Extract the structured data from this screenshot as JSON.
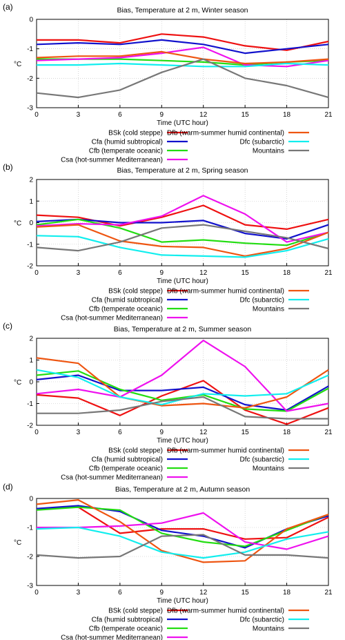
{
  "series_meta": [
    {
      "name": "BSk (cold steppe)",
      "color": "#ee1111"
    },
    {
      "name": "Cfa (humid subtropical)",
      "color": "#1111cc"
    },
    {
      "name": "Cfb (temperate oceanic)",
      "color": "#22dd11"
    },
    {
      "name": "Csa (hot-summer Mediterranean)",
      "color": "#ee11ee"
    },
    {
      "name": "Dfb (warm-summer humid continental)",
      "color": "#ee5511"
    },
    {
      "name": "Dfc (subarctic)",
      "color": "#11eeee"
    },
    {
      "name": "Mountains",
      "color": "#777777"
    }
  ],
  "chart_data": [
    {
      "type": "line",
      "panel_label": "(a)",
      "title": "Bias, Temperature at 2 m, Winter season",
      "xlabel": "Time (UTC hour)",
      "ylabel": "°C",
      "x": [
        0,
        3,
        6,
        9,
        12,
        15,
        18,
        21
      ],
      "xlim": [
        0,
        21
      ],
      "ylim": [
        -3,
        0
      ],
      "yticks": [
        -3,
        -2,
        -1,
        0
      ],
      "grid": true,
      "legend_position": "below",
      "series": [
        {
          "name": "BSk (cold steppe)",
          "values": [
            -0.7,
            -0.7,
            -0.8,
            -0.5,
            -0.6,
            -0.9,
            -1.05,
            -0.75
          ]
        },
        {
          "name": "Cfa (humid subtropical)",
          "values": [
            -0.85,
            -0.8,
            -0.85,
            -0.7,
            -0.85,
            -1.15,
            -1.0,
            -0.85
          ]
        },
        {
          "name": "Cfb (temperate oceanic)",
          "values": [
            -1.35,
            -1.35,
            -1.35,
            -1.4,
            -1.45,
            -1.55,
            -1.45,
            -1.4
          ]
        },
        {
          "name": "Csa (hot-summer Mediterranean)",
          "values": [
            -1.4,
            -1.35,
            -1.3,
            -1.15,
            -0.95,
            -1.55,
            -1.6,
            -1.4
          ]
        },
        {
          "name": "Dfb (warm-summer humid continental)",
          "values": [
            -1.3,
            -1.25,
            -1.25,
            -1.1,
            -1.35,
            -1.5,
            -1.45,
            -1.35
          ]
        },
        {
          "name": "Dfc (subarctic)",
          "values": [
            -1.55,
            -1.55,
            -1.5,
            -1.55,
            -1.6,
            -1.6,
            -1.5,
            -1.55
          ]
        },
        {
          "name": "Mountains",
          "values": [
            -2.5,
            -2.65,
            -2.4,
            -1.8,
            -1.35,
            -2.0,
            -2.25,
            -2.65
          ]
        }
      ]
    },
    {
      "type": "line",
      "panel_label": "(b)",
      "title": "Bias, Temperature at 2 m, Spring season",
      "xlabel": "Time (UTC hour)",
      "ylabel": "°C",
      "x": [
        0,
        3,
        6,
        9,
        12,
        15,
        18,
        21
      ],
      "xlim": [
        0,
        21
      ],
      "ylim": [
        -2,
        2
      ],
      "yticks": [
        -2,
        -1,
        0,
        1,
        2
      ],
      "grid": true,
      "legend_position": "below",
      "series": [
        {
          "name": "BSk (cold steppe)",
          "values": [
            0.35,
            0.25,
            -0.15,
            0.25,
            0.8,
            -0.1,
            -0.3,
            0.15
          ]
        },
        {
          "name": "Cfa (humid subtropical)",
          "values": [
            0.05,
            0.15,
            0.0,
            0.0,
            0.1,
            -0.5,
            -0.75,
            -0.1
          ]
        },
        {
          "name": "Cfb (temperate oceanic)",
          "values": [
            -0.1,
            0.15,
            -0.25,
            -0.9,
            -0.8,
            -0.95,
            -1.05,
            -0.45
          ]
        },
        {
          "name": "Csa (hot-summer Mediterranean)",
          "values": [
            -0.15,
            -0.05,
            -0.1,
            0.3,
            1.25,
            0.4,
            -0.9,
            -0.45
          ]
        },
        {
          "name": "Dfb (warm-summer humid continental)",
          "values": [
            -0.2,
            -0.1,
            -0.85,
            -1.1,
            -1.15,
            -1.55,
            -1.2,
            -0.45
          ]
        },
        {
          "name": "Dfc (subarctic)",
          "values": [
            -0.6,
            -0.65,
            -1.15,
            -1.5,
            -1.55,
            -1.6,
            -1.3,
            -0.75
          ]
        },
        {
          "name": "Mountains",
          "values": [
            -1.15,
            -1.3,
            -0.9,
            -0.25,
            -0.1,
            -0.4,
            -0.7,
            -1.2
          ]
        }
      ]
    },
    {
      "type": "line",
      "panel_label": "(c)",
      "title": "Bias, Temperature at 2 m, Summer season",
      "xlabel": "Time (UTC hour)",
      "ylabel": "°C",
      "x": [
        0,
        3,
        6,
        9,
        12,
        15,
        18,
        21
      ],
      "xlim": [
        0,
        21
      ],
      "ylim": [
        -2,
        2
      ],
      "yticks": [
        -2,
        -1,
        0,
        1,
        2
      ],
      "grid": true,
      "legend_position": "below",
      "series": [
        {
          "name": "BSk (cold steppe)",
          "values": [
            -0.6,
            -0.75,
            -1.55,
            -0.65,
            0.05,
            -1.3,
            -1.95,
            -1.2
          ]
        },
        {
          "name": "Cfa (humid subtropical)",
          "values": [
            0.1,
            0.3,
            -0.4,
            -0.4,
            -0.25,
            -1.05,
            -1.3,
            -0.2
          ]
        },
        {
          "name": "Cfb (temperate oceanic)",
          "values": [
            0.3,
            0.5,
            -0.35,
            -0.85,
            -0.6,
            -1.25,
            -1.35,
            -0.3
          ]
        },
        {
          "name": "Csa (hot-summer Mediterranean)",
          "values": [
            -0.55,
            -0.35,
            -0.7,
            0.3,
            1.9,
            0.7,
            -1.35,
            -1.0
          ]
        },
        {
          "name": "Dfb (warm-summer humid continental)",
          "values": [
            1.1,
            0.85,
            -0.7,
            -1.1,
            -1.0,
            -1.2,
            -0.7,
            0.55
          ]
        },
        {
          "name": "Dfc (subarctic)",
          "values": [
            0.55,
            0.2,
            -0.7,
            -1.05,
            -0.55,
            -0.65,
            -0.55,
            0.3
          ]
        },
        {
          "name": "Mountains",
          "values": [
            -1.45,
            -1.45,
            -1.3,
            -0.9,
            -0.7,
            -1.6,
            -1.7,
            -1.7
          ]
        }
      ]
    },
    {
      "type": "line",
      "panel_label": "(d)",
      "title": "Bias, Temperature at 2 m, Autumn season",
      "xlabel": "Time (UTC hour)",
      "ylabel": "°C",
      "x": [
        0,
        3,
        6,
        9,
        12,
        15,
        18,
        21
      ],
      "xlim": [
        0,
        21
      ],
      "ylim": [
        -3,
        0
      ],
      "yticks": [
        -3,
        -2,
        -1,
        0
      ],
      "grid": true,
      "legend_position": "below",
      "series": [
        {
          "name": "BSk (cold steppe)",
          "values": [
            -0.35,
            -0.3,
            -1.2,
            -1.05,
            -1.05,
            -1.4,
            -1.35,
            -0.65
          ]
        },
        {
          "name": "Cfa (humid subtropical)",
          "values": [
            -0.35,
            -0.25,
            -0.45,
            -1.1,
            -1.3,
            -1.7,
            -1.05,
            -0.6
          ]
        },
        {
          "name": "Cfb (temperate oceanic)",
          "values": [
            -0.4,
            -0.3,
            -0.4,
            -1.2,
            -1.5,
            -1.65,
            -1.1,
            -0.55
          ]
        },
        {
          "name": "Csa (hot-summer Mediterranean)",
          "values": [
            -1.0,
            -1.0,
            -0.95,
            -0.85,
            -0.5,
            -1.5,
            -1.75,
            -1.3
          ]
        },
        {
          "name": "Dfb (warm-summer humid continental)",
          "values": [
            -0.2,
            -0.05,
            -0.8,
            -1.8,
            -2.2,
            -2.15,
            -1.05,
            -0.55
          ]
        },
        {
          "name": "Dfc (subarctic)",
          "values": [
            -1.05,
            -1.0,
            -1.3,
            -1.85,
            -2.05,
            -1.85,
            -1.4,
            -1.15
          ]
        },
        {
          "name": "Mountains",
          "values": [
            -1.95,
            -2.05,
            -2.0,
            -1.3,
            -1.25,
            -1.95,
            -1.95,
            -2.05
          ]
        }
      ]
    }
  ]
}
